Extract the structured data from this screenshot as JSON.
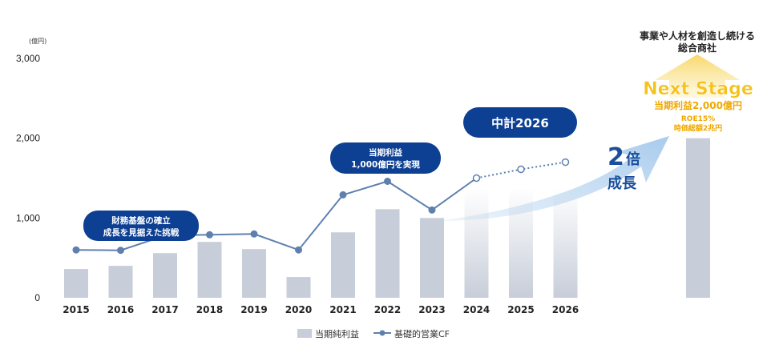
{
  "chart_data": {
    "type": "bar",
    "unit_label": "(億円)",
    "categories": [
      "2015",
      "2016",
      "2017",
      "2018",
      "2019",
      "2020",
      "2021",
      "2022",
      "2023",
      "2024",
      "2025",
      "2026"
    ],
    "y_ticks": [
      "0",
      "1,000",
      "2,000",
      "3,000"
    ],
    "ylim": [
      0,
      3000
    ],
    "series": [
      {
        "name": "当期純利益",
        "type": "bar",
        "values": [
          360,
          400,
          560,
          700,
          610,
          260,
          820,
          1110,
          1000,
          1370,
          1370,
          1370
        ],
        "projected_from_index": 9
      },
      {
        "name": "基礎的営業CF",
        "type": "line",
        "values": [
          600,
          595,
          780,
          790,
          800,
          600,
          1290,
          1460,
          1100,
          1500,
          1610,
          1700
        ],
        "projected_from_index": 9
      }
    ],
    "next_stage": {
      "heading_line1": "事業や人材を創造し続ける",
      "heading_line2": "総合商社",
      "title": "Next Stage",
      "profit": "当期利益2,000億円",
      "roe": "ROE15%",
      "market_cap": "時価総額2兆円",
      "bar_value": 2000
    },
    "annotations": {
      "callout_2016_line1": "財務基盤の確立",
      "callout_2016_line2": "成長を見据えた挑戦",
      "callout_2022_line1": "当期利益",
      "callout_2022_line2": "1,000億円を実現",
      "plan_label": "中計2026",
      "growth_big": "2",
      "growth_suffix": "倍",
      "growth_line2": "成長"
    },
    "grid": false,
    "legend_position": "bottom-center"
  },
  "colors": {
    "bar": "#c7cdd9",
    "line": "#5f80ae",
    "callout_bg": "#0d3f93",
    "arrow_light": "#d6e8f7",
    "arrow_dark": "#a9cbed",
    "next_stage_gold": "#f4c21a",
    "next_stage_arrow": "#f8d86a"
  }
}
